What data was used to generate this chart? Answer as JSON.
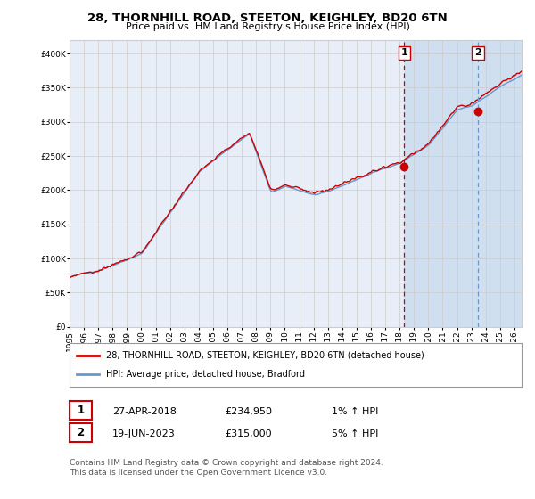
{
  "title": "28, THORNHILL ROAD, STEETON, KEIGHLEY, BD20 6TN",
  "subtitle": "Price paid vs. HM Land Registry's House Price Index (HPI)",
  "legend_line1": "28, THORNHILL ROAD, STEETON, KEIGHLEY, BD20 6TN (detached house)",
  "legend_line2": "HPI: Average price, detached house, Bradford",
  "sale1_label": "1",
  "sale1_date": "27-APR-2018",
  "sale1_price": "£234,950",
  "sale1_hpi": "1% ↑ HPI",
  "sale1_year": 2018.32,
  "sale1_value": 234950,
  "sale2_label": "2",
  "sale2_date": "19-JUN-2023",
  "sale2_price": "£315,000",
  "sale2_hpi": "5% ↑ HPI",
  "sale2_year": 2023.46,
  "sale2_value": 315000,
  "hpi_color": "#6699cc",
  "price_color": "#cc0000",
  "background_color": "#ffffff",
  "plot_bg_color": "#e8eef8",
  "highlight_bg_color": "#d0dff0",
  "grid_color": "#cccccc",
  "vline1_color": "#cc0000",
  "vline2_color": "#6699cc",
  "footnote1": "Contains HM Land Registry data © Crown copyright and database right 2024.",
  "footnote2": "This data is licensed under the Open Government Licence v3.0.",
  "ylim": [
    0,
    420000
  ],
  "xlim_start": 1995,
  "xlim_end": 2026.5
}
